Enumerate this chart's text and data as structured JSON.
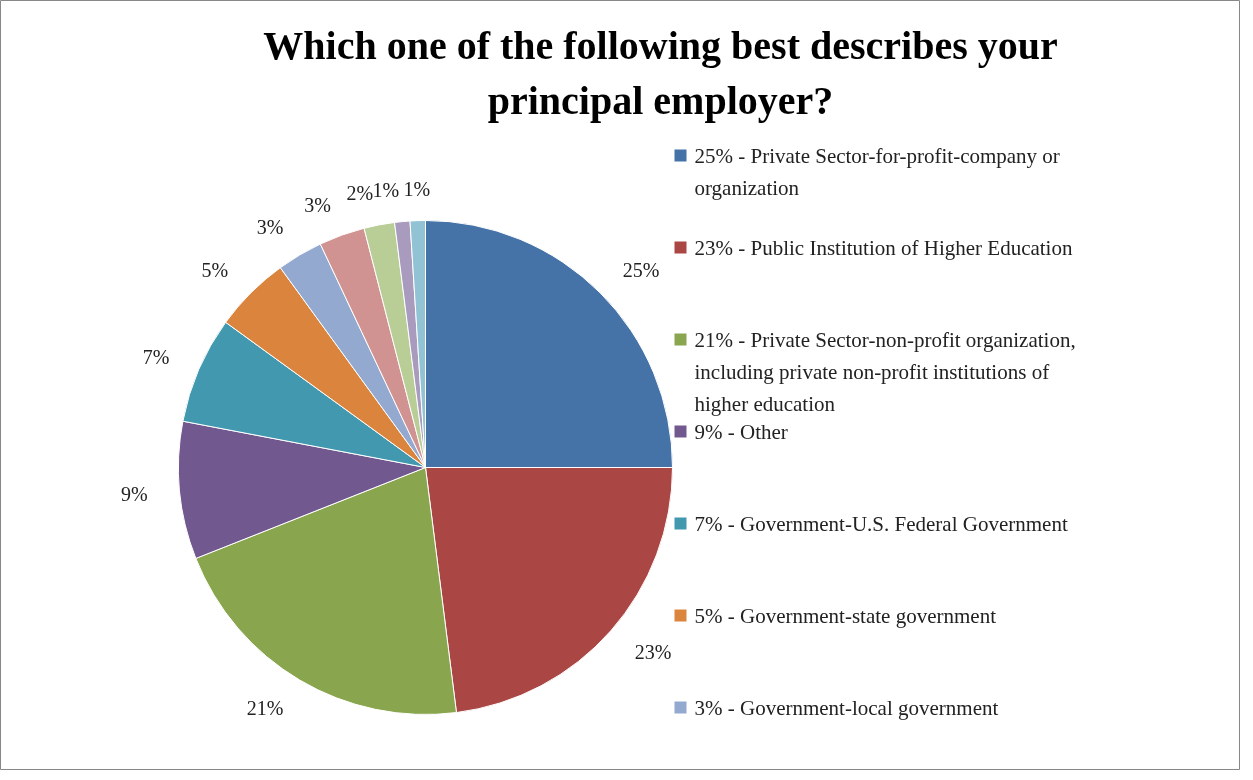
{
  "chart_data": {
    "type": "pie",
    "title": "Which one of the following best describes your principal employer?",
    "categories": [
      "25% - Private Sector-for-profit-company or organization",
      "23% - Public Institution of Higher Education",
      "21% - Private Sector-non-profit organization, including private non-profit institutions of higher education",
      "9% - Other",
      "7% - Government-U.S. Federal Government",
      "5% - Government-state government",
      "3% - Government-local government",
      null,
      null,
      null,
      null
    ],
    "values": [
      25,
      23,
      21,
      9,
      7,
      5,
      3,
      3,
      2,
      1,
      1
    ],
    "value_labels": [
      "25%",
      "23%",
      "21%",
      "9%",
      "7%",
      "5%",
      "3%",
      "3%",
      "2%",
      "1%",
      "1%"
    ],
    "colors": [
      "#4572a7",
      "#aa4643",
      "#89a54e",
      "#71588f",
      "#4198af",
      "#db843d",
      "#93a9cf",
      "#d19392",
      "#b9cd96",
      "#a99bbd",
      "#91c3d5"
    ],
    "legend": "right"
  }
}
